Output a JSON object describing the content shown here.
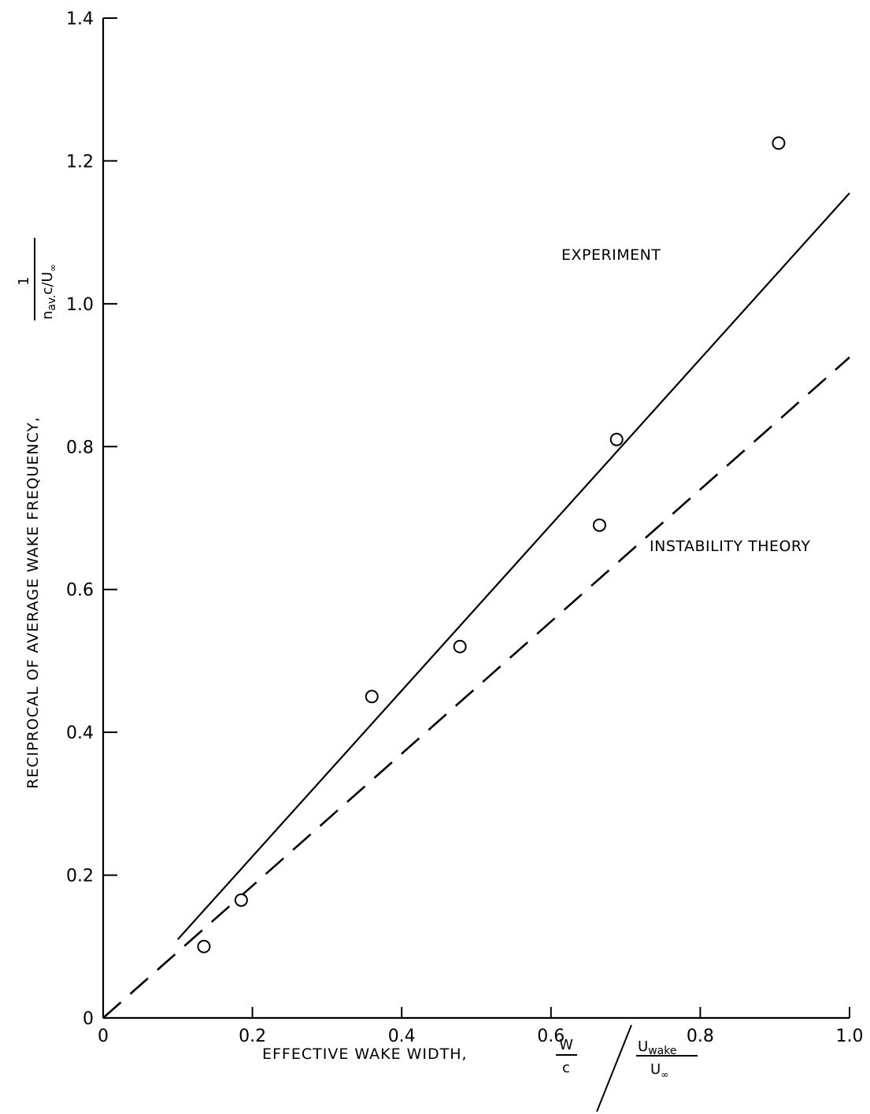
{
  "chart_data": {
    "type": "scatter",
    "title": "",
    "xlabel": "EFFECTIVE WAKE WIDTH,",
    "xlabel_fraction_w": {
      "num": "W",
      "den": "c"
    },
    "xlabel_fraction_u": {
      "num": "U",
      "num_sub": "wake",
      "den": "U",
      "den_sub": "∞"
    },
    "ylabel": "RECIPROCAL OF AVERAGE WAKE FREQUENCY,",
    "ylabel_fraction": {
      "num": "1",
      "den": "n",
      "den_sub": "av.",
      "den_rest": "c/U",
      "den_rest_sub": "∞"
    },
    "xlim": [
      0,
      1.0
    ],
    "ylim": [
      0,
      1.4
    ],
    "x_ticks": [
      {
        "v": 0.0,
        "label": "0"
      },
      {
        "v": 0.2,
        "label": "0.2"
      },
      {
        "v": 0.4,
        "label": "0.4"
      },
      {
        "v": 0.6,
        "label": "0.6"
      },
      {
        "v": 0.8,
        "label": "0.8"
      },
      {
        "v": 1.0,
        "label": "1.0"
      }
    ],
    "y_ticks": [
      {
        "v": 0.0,
        "label": "0"
      },
      {
        "v": 0.2,
        "label": "0.2"
      },
      {
        "v": 0.4,
        "label": "0.4"
      },
      {
        "v": 0.6,
        "label": "0.6"
      },
      {
        "v": 0.8,
        "label": "0.8"
      },
      {
        "v": 1.0,
        "label": "1.0"
      },
      {
        "v": 1.2,
        "label": "1.2"
      },
      {
        "v": 1.4,
        "label": "1.4"
      }
    ],
    "grid": false,
    "series": [
      {
        "name": "EXPERIMENT",
        "kind": "solid-line",
        "x": [
          0.1,
          1.0
        ],
        "y": [
          0.11,
          1.155
        ]
      },
      {
        "name": "INSTABILITY THEORY",
        "kind": "dashed-line",
        "x": [
          0.0,
          1.0
        ],
        "y": [
          0.0,
          0.925
        ]
      },
      {
        "name": "",
        "kind": "points",
        "marker": "open-circle",
        "x": [
          0.135,
          0.185,
          0.36,
          0.478,
          0.665,
          0.688,
          0.905
        ],
        "y": [
          0.1,
          0.165,
          0.45,
          0.52,
          0.69,
          0.81,
          1.225
        ]
      }
    ]
  }
}
